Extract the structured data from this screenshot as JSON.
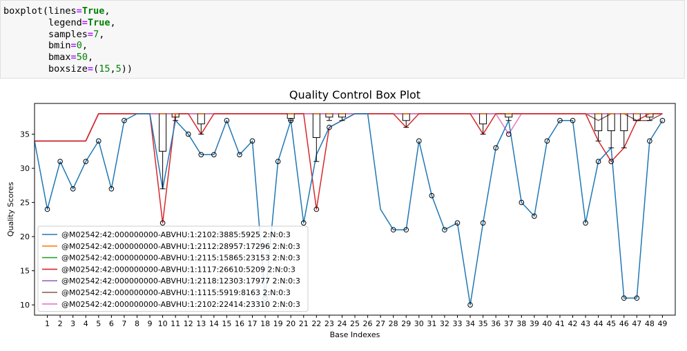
{
  "code_cell": {
    "lines": [
      [
        {
          "t": "boxplot(lines"
        },
        {
          "t": "=",
          "c": "op"
        },
        {
          "t": "True",
          "c": "kw"
        },
        {
          "t": ","
        }
      ],
      [
        {
          "t": "        legend"
        },
        {
          "t": "=",
          "c": "op"
        },
        {
          "t": "True",
          "c": "kw"
        },
        {
          "t": ","
        }
      ],
      [
        {
          "t": "        samples"
        },
        {
          "t": "=",
          "c": "op"
        },
        {
          "t": "7",
          "c": "num"
        },
        {
          "t": ","
        }
      ],
      [
        {
          "t": "        bmin"
        },
        {
          "t": "=",
          "c": "op"
        },
        {
          "t": "0",
          "c": "num"
        },
        {
          "t": ","
        }
      ],
      [
        {
          "t": "        bmax"
        },
        {
          "t": "=",
          "c": "op"
        },
        {
          "t": "50",
          "c": "num"
        },
        {
          "t": ","
        }
      ],
      [
        {
          "t": "        boxsize"
        },
        {
          "t": "=",
          "c": "op"
        },
        {
          "t": "(",
          "c": ""
        },
        {
          "t": "15",
          "c": "num"
        },
        {
          "t": ","
        },
        {
          "t": "5",
          "c": "num"
        },
        {
          "t": "))"
        }
      ]
    ]
  },
  "chart_data": {
    "type": "line",
    "title": "Quality Control Box Plot",
    "xlabel": "Base Indexes",
    "ylabel": "Quality Scores",
    "xlim": [
      0,
      50
    ],
    "ylim": [
      8.5,
      39.5
    ],
    "x_ticks": [
      1,
      2,
      3,
      4,
      5,
      6,
      7,
      8,
      9,
      10,
      11,
      12,
      13,
      14,
      15,
      16,
      17,
      18,
      19,
      20,
      21,
      22,
      23,
      24,
      25,
      26,
      27,
      28,
      29,
      30,
      31,
      32,
      33,
      34,
      35,
      36,
      37,
      38,
      39,
      40,
      41,
      42,
      43,
      44,
      45,
      46,
      47,
      48,
      49
    ],
    "y_ticks": [
      10,
      15,
      20,
      25,
      30,
      35
    ],
    "legend_position": "lower-left",
    "series": [
      {
        "name": "@M02542:42:000000000-ABVHU:1:2102:3885:5925 2:N:0:3",
        "color": "#1f77b4",
        "values": [
          34,
          24,
          31,
          27,
          31,
          34,
          27,
          37,
          38,
          38,
          27,
          37,
          35,
          32,
          32,
          37,
          32,
          34,
          11,
          31,
          37,
          22,
          32,
          36,
          37,
          38,
          38,
          24,
          21,
          21,
          34,
          26,
          21,
          22,
          10,
          22,
          33,
          37,
          25,
          23,
          34,
          37,
          37,
          22,
          31,
          33,
          11,
          11,
          34,
          37
        ]
      },
      {
        "name": "@M02542:42:000000000-ABVHU:1:2112:28957:17296 2:N:0:3",
        "color": "#ff7f0e",
        "values": [
          34,
          34,
          34,
          34,
          34,
          38,
          38,
          38,
          38,
          38,
          38,
          38,
          38,
          38,
          38,
          38,
          38,
          38,
          38,
          38,
          38,
          38,
          38,
          38,
          38,
          38,
          38,
          38,
          38,
          38,
          38,
          38,
          38,
          38,
          38,
          38,
          38,
          38,
          38,
          38,
          38,
          38,
          38,
          38,
          38,
          38,
          38,
          38,
          38,
          38
        ]
      },
      {
        "name": "@M02542:42:000000000-ABVHU:1:2115:15865:23153 2:N:0:3",
        "color": "#2ca02c",
        "values": [
          34,
          34,
          34,
          34,
          34,
          38,
          38,
          38,
          38,
          38,
          38,
          38,
          38,
          38,
          38,
          38,
          38,
          38,
          38,
          38,
          38,
          38,
          38,
          38,
          38,
          38,
          38,
          38,
          38,
          38,
          38,
          38,
          38,
          38,
          38,
          38,
          38,
          38,
          38,
          38,
          38,
          38,
          38,
          38,
          38,
          38,
          38,
          38,
          38,
          38
        ]
      },
      {
        "name": "@M02542:42:000000000-ABVHU:1:1117:26610:5209 2:N:0:3",
        "color": "#d62728",
        "values": [
          34,
          34,
          34,
          34,
          34,
          38,
          38,
          38,
          38,
          38,
          22,
          38,
          38,
          35,
          38,
          38,
          38,
          38,
          38,
          38,
          38,
          38,
          24,
          36,
          37,
          38,
          38,
          38,
          38,
          36,
          38,
          38,
          38,
          38,
          38,
          35,
          38,
          38,
          38,
          38,
          38,
          38,
          38,
          38,
          34,
          31,
          33,
          37,
          38,
          38
        ]
      },
      {
        "name": "@M02542:42:000000000-ABVHU:1:2118:12303:17977 2:N:0:3",
        "color": "#9467bd",
        "values": [
          34,
          34,
          34,
          34,
          34,
          38,
          38,
          38,
          38,
          38,
          38,
          38,
          38,
          38,
          38,
          38,
          38,
          38,
          38,
          38,
          38,
          38,
          38,
          38,
          38,
          38,
          38,
          38,
          38,
          38,
          38,
          38,
          38,
          38,
          38,
          38,
          38,
          38,
          38,
          38,
          38,
          38,
          38,
          38,
          38,
          38,
          38,
          38,
          38,
          38
        ]
      },
      {
        "name": "@M02542:42:000000000-ABVHU:1:1115:5919:8163 2:N:0:3",
        "color": "#8c564b",
        "values": [
          34,
          34,
          34,
          34,
          34,
          38,
          38,
          38,
          38,
          38,
          38,
          38,
          38,
          38,
          38,
          38,
          38,
          38,
          38,
          38,
          38,
          38,
          38,
          38,
          38,
          38,
          38,
          38,
          38,
          38,
          38,
          38,
          38,
          38,
          38,
          38,
          38,
          38,
          38,
          38,
          38,
          38,
          38,
          38,
          37,
          38,
          38,
          37,
          37,
          38
        ]
      },
      {
        "name": "@M02542:42:000000000-ABVHU:1:2102:22414:23310 2:N:0:3",
        "color": "#e377c2",
        "values": [
          34,
          34,
          34,
          34,
          34,
          38,
          38,
          38,
          38,
          38,
          38,
          38,
          38,
          38,
          38,
          38,
          38,
          38,
          38,
          38,
          38,
          38,
          38,
          38,
          38,
          38,
          38,
          38,
          38,
          38,
          38,
          38,
          38,
          38,
          38,
          38,
          38,
          35,
          38,
          38,
          38,
          38,
          38,
          38,
          38,
          38,
          38,
          38,
          38,
          38
        ]
      }
    ],
    "boxes": [
      {
        "x": 10,
        "q1": 32.5,
        "q3": 38,
        "whisker_low": 27,
        "median": 38
      },
      {
        "x": 11,
        "q1": 37.5,
        "q3": 38,
        "whisker_low": 37,
        "median": 38
      },
      {
        "x": 13,
        "q1": 36.5,
        "q3": 38,
        "whisker_low": 35,
        "median": 38
      },
      {
        "x": 20,
        "q1": 37.3,
        "q3": 38,
        "whisker_low": 37,
        "median": 38
      },
      {
        "x": 22,
        "q1": 34.5,
        "q3": 38,
        "whisker_low": 31,
        "median": 38
      },
      {
        "x": 23,
        "q1": 37.5,
        "q3": 38,
        "whisker_low": 37,
        "median": 38
      },
      {
        "x": 24,
        "q1": 37.5,
        "q3": 38,
        "whisker_low": 37,
        "median": 38
      },
      {
        "x": 29,
        "q1": 37,
        "q3": 38,
        "whisker_low": 36,
        "median": 38
      },
      {
        "x": 35,
        "q1": 36.5,
        "q3": 38,
        "whisker_low": 35,
        "median": 38
      },
      {
        "x": 37,
        "q1": 37.5,
        "q3": 38,
        "whisker_low": 37,
        "median": 38
      },
      {
        "x": 44,
        "q1": 35.5,
        "q3": 38,
        "whisker_low": 34,
        "median": 38
      },
      {
        "x": 45,
        "q1": 35.5,
        "q3": 38,
        "whisker_low": 33,
        "median": 38
      },
      {
        "x": 46,
        "q1": 35.5,
        "q3": 38,
        "whisker_low": 33,
        "median": 38
      },
      {
        "x": 47,
        "q1": 37,
        "q3": 38,
        "whisker_low": 37,
        "median": 38
      },
      {
        "x": 48,
        "q1": 37.5,
        "q3": 38,
        "whisker_low": 37,
        "median": 38
      }
    ],
    "outliers": [
      [
        1,
        24
      ],
      [
        2,
        31
      ],
      [
        3,
        27
      ],
      [
        4,
        31
      ],
      [
        5,
        34
      ],
      [
        6,
        27
      ],
      [
        7,
        37
      ],
      [
        10,
        22
      ],
      [
        12,
        35
      ],
      [
        13,
        32
      ],
      [
        14,
        32
      ],
      [
        15,
        37
      ],
      [
        16,
        32
      ],
      [
        17,
        34
      ],
      [
        18,
        11
      ],
      [
        19,
        31
      ],
      [
        20,
        37
      ],
      [
        21,
        22
      ],
      [
        22,
        24
      ],
      [
        23,
        36
      ],
      [
        28,
        21
      ],
      [
        29,
        21
      ],
      [
        30,
        34
      ],
      [
        31,
        26
      ],
      [
        32,
        21
      ],
      [
        33,
        22
      ],
      [
        34,
        10
      ],
      [
        35,
        22
      ],
      [
        36,
        33
      ],
      [
        37,
        35
      ],
      [
        38,
        25
      ],
      [
        39,
        23
      ],
      [
        40,
        34
      ],
      [
        41,
        37
      ],
      [
        42,
        37
      ],
      [
        43,
        22
      ],
      [
        44,
        31
      ],
      [
        45,
        31
      ],
      [
        46,
        11
      ],
      [
        47,
        11
      ],
      [
        48,
        34
      ],
      [
        49,
        37
      ]
    ]
  }
}
